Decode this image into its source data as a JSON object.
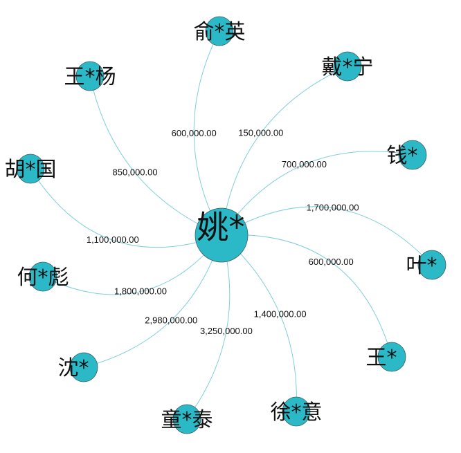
{
  "colors": {
    "node_fill": "#2bb8c7",
    "edge": "#7fcfd8",
    "text": "#111111"
  },
  "center": {
    "name": "姚*"
  },
  "nodes": [
    {
      "name": "俞*英",
      "amount": "600,000.00"
    },
    {
      "name": "戴*宁",
      "amount": "150,000.00"
    },
    {
      "name": "钱*",
      "amount": "700,000.00"
    },
    {
      "name": "叶*",
      "amount": "1,700,000.00"
    },
    {
      "name": "王*",
      "amount": "600,000.00"
    },
    {
      "name": "徐*意",
      "amount": "1,400,000.00"
    },
    {
      "name": "童*泰",
      "amount": "3,250,000.00"
    },
    {
      "name": "沈*",
      "amount": "2,980,000.00"
    },
    {
      "name": "何*彪",
      "amount": "1,800,000.00"
    },
    {
      "name": "胡*国",
      "amount": "1,100,000.00"
    },
    {
      "name": "王*杨",
      "amount": "850,000.00"
    }
  ]
}
